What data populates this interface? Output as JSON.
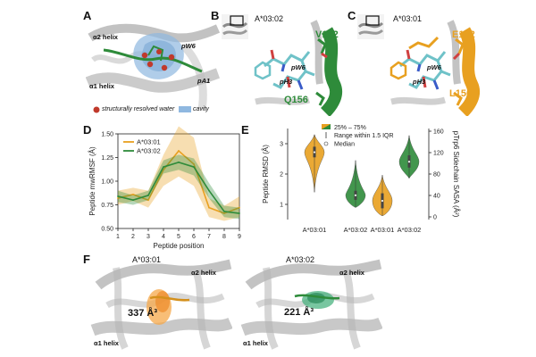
{
  "panels": {
    "A": {
      "letter": "A",
      "helix_top": "α2 helix",
      "helix_bottom": "α1 helix",
      "pw6": "pW6",
      "pa1": "pA1",
      "legend_water": "structurally resolved water",
      "legend_cavity": "cavity",
      "colors": {
        "peptide": "#2e8b3a",
        "cavity": "#8fb8e0",
        "water": "#c0392b"
      }
    },
    "B": {
      "letter": "B",
      "title": "A*03:02",
      "res_top": "V152",
      "res_bottom": "Q156",
      "pw6": "pW6",
      "ph3": "pH3",
      "color": "#2e8b3a"
    },
    "C": {
      "letter": "C",
      "title": "A*03:01",
      "res_top": "E152",
      "res_bottom": "L156",
      "pw6": "pW6",
      "ph3": "pH3",
      "color": "#e8a020"
    },
    "D": {
      "letter": "D"
    },
    "E": {
      "letter": "E"
    },
    "F": {
      "letter": "F",
      "left_title": "A*03:01",
      "right_title": "A*03:02",
      "left_volume": "337 Å³",
      "right_volume": "221 Å³",
      "helix_top": "α2 helix",
      "helix_bottom": "α1 helix"
    }
  },
  "chart_data": [
    {
      "type": "line",
      "panel": "D",
      "xlabel": "Peptide position",
      "ylabel": "Peptide mwRMSF (Å)",
      "x": [
        1,
        2,
        3,
        4,
        5,
        6,
        7,
        8,
        9
      ],
      "xlim": [
        1,
        9
      ],
      "ylim": [
        0.5,
        1.5
      ],
      "yticks": [
        0.5,
        0.75,
        1.0,
        1.25,
        1.5
      ],
      "yticklabels": [
        "0.50",
        "0.75",
        "1.00",
        "1.25",
        "1.50"
      ],
      "xticks": [
        "1",
        "2",
        "3",
        "4",
        "5",
        "6",
        "7",
        "8",
        "9"
      ],
      "legend_position": "top-left",
      "series": [
        {
          "name": "A*03:01",
          "color": "#e8a020",
          "values": [
            0.82,
            0.86,
            0.8,
            1.12,
            1.32,
            1.18,
            0.72,
            0.66,
            0.72
          ],
          "lower": [
            0.75,
            0.79,
            0.72,
            0.95,
            1.05,
            0.95,
            0.62,
            0.58,
            0.62
          ],
          "upper": [
            0.9,
            0.93,
            0.9,
            1.28,
            1.58,
            1.46,
            0.82,
            0.74,
            0.84
          ]
        },
        {
          "name": "A*03:02",
          "color": "#2e8b3a",
          "values": [
            0.84,
            0.8,
            0.85,
            1.15,
            1.2,
            1.15,
            0.9,
            0.68,
            0.66
          ],
          "lower": [
            0.78,
            0.75,
            0.8,
            1.08,
            1.12,
            1.06,
            0.82,
            0.62,
            0.6
          ],
          "upper": [
            0.9,
            0.85,
            0.9,
            1.22,
            1.28,
            1.24,
            0.98,
            0.74,
            0.72
          ]
        }
      ]
    },
    {
      "type": "violin",
      "panel": "E",
      "ylabel_left": "Peptide RMSD (Å)",
      "ylabel_right": "pTrp6 Sidechain SASA (Å²)",
      "ylim_left": [
        0.5,
        3.5
      ],
      "yticks_left": [
        "1",
        "2",
        "3"
      ],
      "ylim_right": [
        -5,
        165
      ],
      "yticks_right": [
        "0",
        "40",
        "80",
        "120",
        "160"
      ],
      "legend": {
        "iqr_label": "25% – 75%",
        "range_label": "Range within 1.5 IQR",
        "median_label": "Median"
      },
      "groups": [
        {
          "metric": "Peptide RMSD",
          "label": "A*03:01",
          "color": "#e8a020",
          "median": 2.72,
          "q1": 2.55,
          "q3": 2.9,
          "min": 1.4,
          "max": 3.3
        },
        {
          "metric": "Peptide RMSD",
          "label": "A*03:02",
          "color": "#2e8b3a",
          "median": 1.3,
          "q1": 1.15,
          "q3": 1.45,
          "min": 0.9,
          "max": 2.45
        },
        {
          "metric": "pTrp6 Sidechain SASA",
          "label": "A*03:01",
          "color": "#e8a020",
          "median": 30,
          "q1": 16,
          "q3": 44,
          "min": 2,
          "max": 78
        },
        {
          "metric": "pTrp6 Sidechain SASA",
          "label": "A*03:02",
          "color": "#2e8b3a",
          "median": 103,
          "q1": 92,
          "q3": 115,
          "min": 72,
          "max": 152
        }
      ]
    }
  ]
}
